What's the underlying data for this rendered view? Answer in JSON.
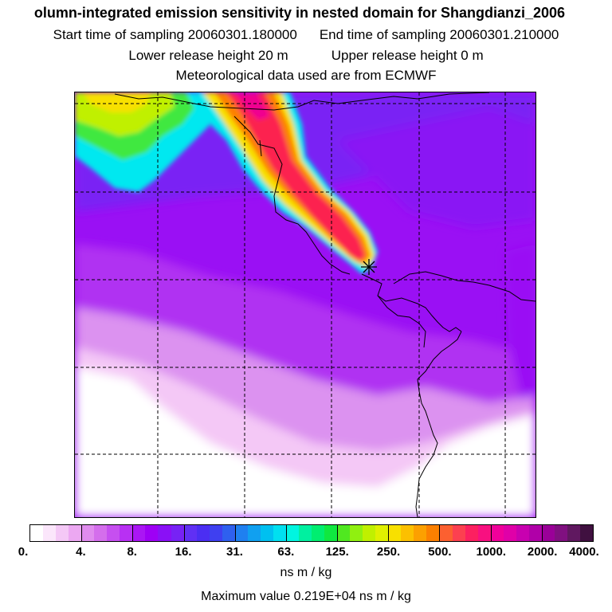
{
  "header": {
    "title": "olumn-integrated emission sensitivity in nested domain for Shangdianzi_2006",
    "start_label": "Start time of sampling 20060301.180000",
    "end_label": "End time of sampling 20060301.210000",
    "lower_label": "Lower release height   20 m",
    "upper_label": "Upper release height    0 m",
    "met_label": "Meteorological data used are from ECMWF"
  },
  "colorbar": {
    "ticks": [
      "0.",
      "4.",
      "8.",
      "16.",
      "31.",
      "63.",
      "125.",
      "250.",
      "500.",
      "1000.",
      "2000.",
      "4000."
    ],
    "colors": [
      "#ffffff",
      "#fbe6fb",
      "#f4c8f6",
      "#eca8f2",
      "#e08cee",
      "#d46eec",
      "#c64ff0",
      "#b830f3",
      "#aa16f4",
      "#9e00f5",
      "#8a10f6",
      "#7722f5",
      "#6030f4",
      "#4b2ef2",
      "#3f40f0",
      "#2f60ef",
      "#1f80f0",
      "#10a0f0",
      "#00c0f0",
      "#00e0f0",
      "#00f5e0",
      "#00f0a0",
      "#00ee70",
      "#10e840",
      "#50e820",
      "#90f010",
      "#c0f000",
      "#e0f000",
      "#f8e000",
      "#fcc000",
      "#fca000",
      "#fc8000",
      "#fc6030",
      "#fc4050",
      "#fc2060",
      "#f81080",
      "#f0009a",
      "#e000a8",
      "#c800b0",
      "#b000a8",
      "#9a0098",
      "#801080",
      "#601860",
      "#401040"
    ],
    "units": "ns m / kg",
    "max_value": "Maximum value  0.219E+04 ns m / kg"
  },
  "map": {
    "receptor_marker": "star-icon",
    "palette": {
      "white": "#ffffff",
      "pale_pink": "#f4c8f6",
      "light_violet": "#dc92f0",
      "violet": "#b030f2",
      "purple": "#9a10f4",
      "blue_violet": "#7a20f4",
      "cyan": "#00e8f0",
      "green": "#40e840",
      "yellow_green": "#c0f000",
      "yellow": "#f8e000",
      "orange": "#fc8000",
      "red": "#fc2050",
      "magenta": "#f00090",
      "pink": "#fc60a0"
    }
  }
}
